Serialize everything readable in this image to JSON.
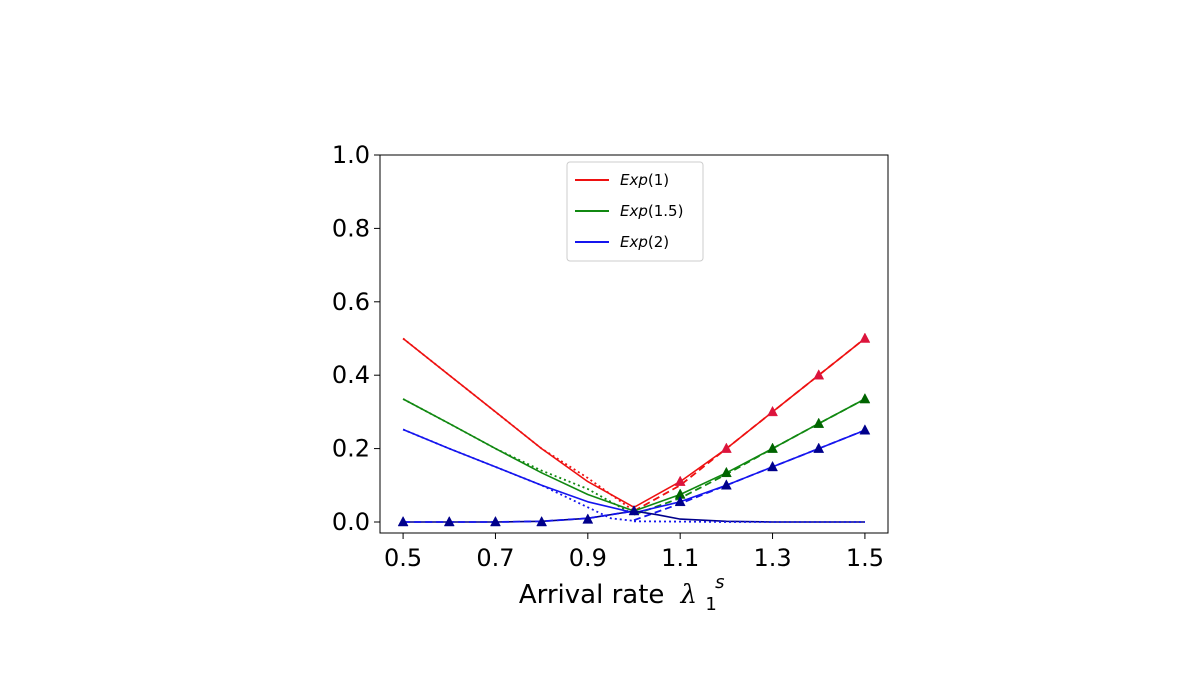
{
  "chart_data": {
    "type": "line",
    "title": "",
    "xlabel": "Arrival rate",
    "xlabel_symbol": "λ",
    "xlabel_sub": "1",
    "xlabel_sup": "s",
    "ylabel": "",
    "xlim": [
      0.45,
      1.55
    ],
    "ylim": [
      -0.03,
      1.0
    ],
    "xticks": [
      0.5,
      0.7,
      0.9,
      1.1,
      1.3,
      1.5
    ],
    "xtick_labels": [
      "0.5",
      "0.7",
      "0.9",
      "1.1",
      "1.3",
      "1.5"
    ],
    "yticks": [
      0.0,
      0.2,
      0.4,
      0.6,
      0.8,
      1.0
    ],
    "ytick_labels": [
      "0.0",
      "0.2",
      "0.4",
      "0.6",
      "0.8",
      "1.0"
    ],
    "grid": false,
    "legend_position": "top-center",
    "legend": [
      {
        "label_italic": "Exp",
        "label_arg": "(1)",
        "color": "#ee1111"
      },
      {
        "label_italic": "Exp",
        "label_arg": "(1.5)",
        "color": "#118811"
      },
      {
        "label_italic": "Exp",
        "label_arg": "(2)",
        "color": "#1515ee"
      }
    ],
    "series": [
      {
        "group": "Exp(1)",
        "line_style": "solid",
        "color": "#ee1111",
        "x": [
          0.5,
          0.6,
          0.7,
          0.8,
          0.9,
          1.0,
          1.1,
          1.2,
          1.3,
          1.4,
          1.5
        ],
        "y": [
          0.5,
          0.4,
          0.3,
          0.2,
          0.11,
          0.04,
          0.11,
          0.2,
          0.3,
          0.4,
          0.5
        ]
      },
      {
        "group": "Exp(1)",
        "line_style": "dotted",
        "color": "#ee1111",
        "x": [
          0.5,
          0.6,
          0.7,
          0.8,
          0.9,
          1.0
        ],
        "y": [
          0.5,
          0.4,
          0.3,
          0.2,
          0.12,
          0.03
        ]
      },
      {
        "group": "Exp(1)",
        "line_style": "dashed",
        "color": "#ee1111",
        "x": [
          1.0,
          1.1,
          1.2,
          1.3,
          1.4,
          1.5
        ],
        "y": [
          0.03,
          0.1,
          0.2,
          0.3,
          0.4,
          0.5
        ]
      },
      {
        "group": "Exp(1)",
        "line_style": "markers",
        "color": "#dc143c",
        "x": [
          1.1,
          1.2,
          1.3,
          1.4,
          1.5
        ],
        "y": [
          0.11,
          0.2,
          0.3,
          0.4,
          0.5
        ]
      },
      {
        "group": "Exp(1.5)",
        "line_style": "solid",
        "color": "#118811",
        "x": [
          0.5,
          0.6,
          0.7,
          0.8,
          0.9,
          1.0,
          1.1,
          1.2,
          1.3,
          1.4,
          1.5
        ],
        "y": [
          0.335,
          0.268,
          0.2,
          0.134,
          0.075,
          0.03,
          0.075,
          0.134,
          0.2,
          0.268,
          0.335
        ]
      },
      {
        "group": "Exp(1.5)",
        "line_style": "dotted",
        "color": "#118811",
        "x": [
          0.5,
          0.6,
          0.7,
          0.8,
          0.9,
          1.0
        ],
        "y": [
          0.335,
          0.268,
          0.2,
          0.14,
          0.09,
          0.02
        ]
      },
      {
        "group": "Exp(1.5)",
        "line_style": "dashed",
        "color": "#118811",
        "x": [
          1.0,
          1.1,
          1.2,
          1.3,
          1.4,
          1.5
        ],
        "y": [
          0.02,
          0.065,
          0.13,
          0.2,
          0.268,
          0.335
        ]
      },
      {
        "group": "Exp(1.5)",
        "line_style": "markers",
        "color": "#006400",
        "x": [
          1.1,
          1.2,
          1.3,
          1.4,
          1.5
        ],
        "y": [
          0.075,
          0.134,
          0.2,
          0.268,
          0.335
        ]
      },
      {
        "group": "Exp(2)",
        "line_style": "solid",
        "color": "#1515ee",
        "x": [
          0.5,
          0.6,
          0.7,
          0.8,
          0.9,
          1.0,
          1.1,
          1.2,
          1.3,
          1.4,
          1.5
        ],
        "y": [
          0.252,
          0.2,
          0.15,
          0.1,
          0.055,
          0.025,
          0.055,
          0.1,
          0.15,
          0.2,
          0.25
        ]
      },
      {
        "group": "Exp(2)",
        "line_style": "dotted",
        "color": "#1515ee",
        "x": [
          0.5,
          0.6,
          0.7,
          0.8,
          0.9,
          0.95,
          1.0
        ],
        "y": [
          0.252,
          0.2,
          0.15,
          0.1,
          0.04,
          0.01,
          0.003
        ]
      },
      {
        "group": "Exp(2)",
        "line_style": "dashed",
        "color": "#1515ee",
        "x": [
          1.0,
          1.1,
          1.2,
          1.3,
          1.4,
          1.5
        ],
        "y": [
          0.005,
          0.05,
          0.1,
          0.15,
          0.2,
          0.25
        ]
      },
      {
        "group": "Exp(2)",
        "line_style": "markers",
        "color": "#00008b",
        "x": [
          1.1,
          1.2,
          1.3,
          1.4,
          1.5
        ],
        "y": [
          0.055,
          0.1,
          0.15,
          0.2,
          0.25
        ]
      },
      {
        "group": "low-branch",
        "line_style": "solid",
        "color": "#00008b",
        "x": [
          0.5,
          0.6,
          0.7,
          0.8,
          0.9,
          1.0,
          1.05,
          1.1,
          1.2,
          1.3,
          1.4,
          1.5
        ],
        "y": [
          0.0,
          0.0,
          0.0,
          0.002,
          0.01,
          0.03,
          0.02,
          0.008,
          0.002,
          0.0,
          0.0,
          0.0
        ]
      },
      {
        "group": "low-branch",
        "line_style": "dotted",
        "color": "#1515ee",
        "x": [
          1.0,
          1.1,
          1.2,
          1.3,
          1.4,
          1.5
        ],
        "y": [
          0.002,
          0.001,
          0.0,
          0.0,
          0.0,
          0.0
        ]
      },
      {
        "group": "low-branch",
        "line_style": "dashed",
        "color": "#1515ee",
        "x": [
          0.5,
          0.6,
          0.7,
          0.8,
          0.9,
          1.0
        ],
        "y": [
          0.0,
          0.0,
          0.0,
          0.002,
          0.01,
          0.03
        ]
      },
      {
        "group": "low-branch",
        "line_style": "markers",
        "color": "#00008b",
        "x": [
          0.5,
          0.6,
          0.7,
          0.8,
          0.9,
          1.0
        ],
        "y": [
          0.0,
          0.0,
          0.0,
          0.0,
          0.007,
          0.03
        ]
      }
    ]
  }
}
